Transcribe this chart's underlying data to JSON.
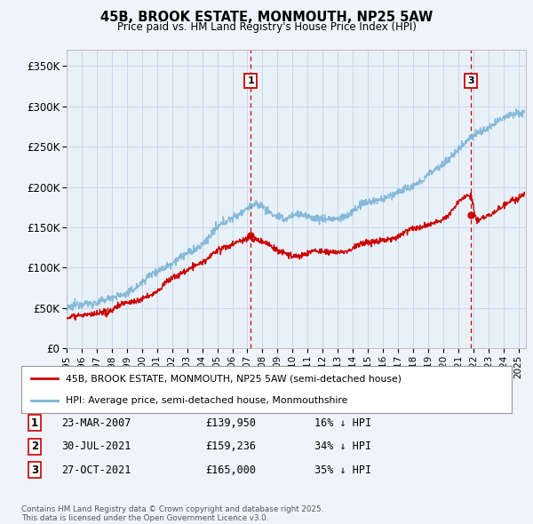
{
  "title": "45B, BROOK ESTATE, MONMOUTH, NP25 5AW",
  "subtitle": "Price paid vs. HM Land Registry's House Price Index (HPI)",
  "xlim_start": 1995.0,
  "xlim_end": 2025.5,
  "ylim_min": 0,
  "ylim_max": 370000,
  "yticks": [
    0,
    50000,
    100000,
    150000,
    200000,
    250000,
    300000,
    350000
  ],
  "ytick_labels": [
    "£0",
    "£50K",
    "£100K",
    "£150K",
    "£200K",
    "£250K",
    "£300K",
    "£350K"
  ],
  "background_color": "#f0f4fa",
  "plot_bg_color": "#e8f0f8",
  "grid_color": "#c8d8e8",
  "hpi_color": "#7ab3d4",
  "price_color": "#cc0000",
  "vline_color": "#cc0000",
  "sale1_date_x": 2007.23,
  "sale1_price": 139950,
  "sale1_label": "1",
  "sale2_date_x": 2021.58,
  "sale2_price": 159236,
  "sale2_label": "2",
  "sale3_date_x": 2021.83,
  "sale3_price": 165000,
  "sale3_label": "3",
  "legend_property": "45B, BROOK ESTATE, MONMOUTH, NP25 5AW (semi-detached house)",
  "legend_hpi": "HPI: Average price, semi-detached house, Monmouthshire",
  "table_rows": [
    {
      "num": "1",
      "date": "23-MAR-2007",
      "price": "£139,950",
      "hpi": "16% ↓ HPI"
    },
    {
      "num": "2",
      "date": "30-JUL-2021",
      "price": "£159,236",
      "hpi": "34% ↓ HPI"
    },
    {
      "num": "3",
      "date": "27-OCT-2021",
      "price": "£165,000",
      "hpi": "35% ↓ HPI"
    }
  ],
  "footnote": "Contains HM Land Registry data © Crown copyright and database right 2025.\nThis data is licensed under the Open Government Licence v3.0."
}
